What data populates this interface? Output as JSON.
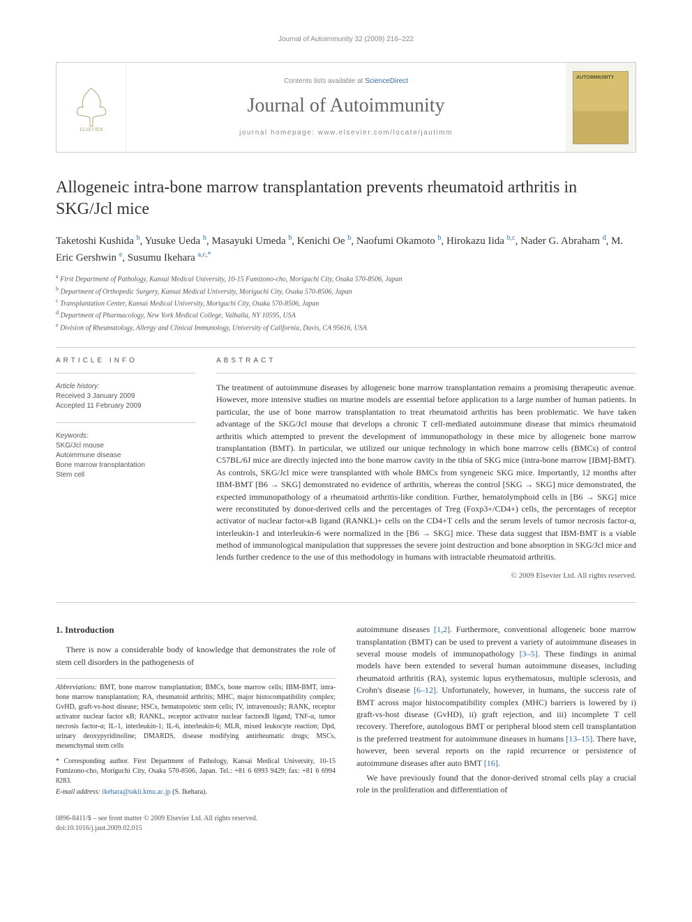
{
  "runningHead": "Journal of Autoimmunity 32 (2009) 216–222",
  "masthead": {
    "contentsPrefix": "Contents lists available at ",
    "contentsLink": "ScienceDirect",
    "journalTitle": "Journal of Autoimmunity",
    "homepagePrefix": "journal homepage: ",
    "homepageUrl": "www.elsevier.com/locate/jautimm",
    "coverTitle": "AUTOIMMUNITY"
  },
  "article": {
    "title": "Allogeneic intra-bone marrow transplantation prevents rheumatoid arthritis in SKG/Jcl mice",
    "authorsHtml": "Taketoshi Kushida <sup>b</sup>, Yusuke Ueda <sup>b</sup>, Masayuki Umeda <sup>b</sup>, Kenichi Oe <sup>b</sup>, Naofumi Okamoto <sup>b</sup>, Hirokazu Iida <sup>b,c</sup>, Nader G. Abraham <sup>d</sup>, M. Eric Gershwin <sup>e</sup>, Susumu Ikehara <sup>a,c,*</sup>",
    "affiliations": [
      "a First Department of Pathology, Kansai Medical University, 10-15 Fumizono-cho, Moriguchi City, Osaka 570-8506, Japan",
      "b Department of Orthopedic Surgery, Kansai Medical University, Moriguchi City, Osaka 570-8506, Japan",
      "c Transplantation Center, Kansai Medical University, Moriguchi City, Osaka 570-8506, Japan",
      "d Department of Pharmacology, New York Medical College, Valhalla, NY 10595, USA",
      "e Division of Rheumatology, Allergy and Clinical Immunology, University of California, Davis, CA 95616, USA"
    ]
  },
  "info": {
    "label": "ARTICLE INFO",
    "historyLabel": "Article history:",
    "received": "Received 3 January 2009",
    "accepted": "Accepted 11 February 2009",
    "keywordsLabel": "Keywords:",
    "keywords": [
      "SKG/Jcl mouse",
      "Autoimmune disease",
      "Bone marrow transplantation",
      "Stem cell"
    ]
  },
  "abstract": {
    "label": "ABSTRACT",
    "text": "The treatment of autoimmune diseases by allogeneic bone marrow transplantation remains a promising therapeutic avenue. However, more intensive studies on murine models are essential before application to a large number of human patients. In particular, the use of bone marrow transplantation to treat rheumatoid arthritis has been problematic. We have taken advantage of the SKG/Jcl mouse that develops a chronic T cell-mediated autoimmune disease that mimics rheumatoid arthritis which attempted to prevent the development of immunopathology in these mice by allogeneic bone marrow transplantation (BMT). In particular, we utilized our unique technology in which bone marrow cells (BMCs) of control C57BL/6J mice are directly injected into the bone marrow cavity in the tibia of SKG mice (intra-bone marrow [IBM]-BMT). As controls, SKG/Jcl mice were transplanted with whole BMCs from syngeneic SKG mice. Importantly, 12 months after IBM-BMT [B6 → SKG] demonstrated no evidence of arthritis, whereas the control [SKG → SKG] mice demonstrated, the expected immunopathology of a rheumatoid arthritis-like condition. Further, hematolymphoid cells in [B6 → SKG] mice were reconstituted by donor-derived cells and the percentages of Treg (Foxp3+/CD4+) cells, the percentages of receptor activator of nuclear factor-κB ligand (RANKL)+ cells on the CD4+T cells and the serum levels of tumor necrosis factor-α, interleukin-1 and interleukin-6 were normalized in the [B6 → SKG] mice. These data suggest that IBM-BMT is a viable method of immunological manipulation that suppresses the severe joint destruction and bone absorption in SKG/Jcl mice and lends further credence to the use of this methodology in humans with intractable rheumatoid arthritis.",
    "copyright": "© 2009 Elsevier Ltd. All rights reserved."
  },
  "body": {
    "introHeading": "1. Introduction",
    "leftPara": "There is now a considerable body of knowledge that demonstrates the role of stem cell disorders in the pathogenesis of",
    "abbrevLabel": "Abbreviations:",
    "abbrevText": " BMT, bone marrow transplantation; BMCs, bone marrow cells; IBM-BMT, intra-bone marrow transplantation; RA, rheumatoid arthritis; MHC, major histocompatibility complex; GvHD, graft-vs-host disease; HSCs, hematopoietic stem cells; IV, intravenously; RANK, receptor activator nuclear factor κB; RANKL, receptor activator nuclear factorκB ligand; TNF-α, tumor necrosis factor-α; IL-1, interleukin-1; IL-6, interleukin-6; MLR, mixed leukocyte reaction; Dpd, urinary deoxypyridinoline; DMARDS, disease modifying antirheumatic drugs; MSCs, mesenchymal stem cells",
    "corrText": "* Corresponding author. First Department of Pathology, Kansai Medical University, 10-15 Fumizono-cho, Moriguchi City, Osaka 570-8506, Japan. Tel.: +81 6 6993 9429; fax: +81 6 6994 8283.",
    "emailLabel": "E-mail address:",
    "email": " ikehara@takii.kmu.ac.jp",
    "emailSuffix": " (S. Ikehara).",
    "rightPara1": "autoimmune diseases [1,2]. Furthermore, conventional allogeneic bone marrow transplantation (BMT) can be used to prevent a variety of autoimmune diseases in several mouse models of immunopathology [3–5]. These findings in animal models have been extended to several human autoimmune diseases, including rheumatoid arthritis (RA), systemic lupus erythematosus, multiple sclerosis, and Crohn's disease [6–12]. Unfortunately, however, in humans, the success rate of BMT across major histocompatibility complex (MHC) barriers is lowered by i) graft-vs-host disease (GvHD), ii) graft rejection, and iii) incomplete T cell recovery. Therefore, autologous BMT or peripheral blood stem cell transplantation is the preferred treatment for autoimmune diseases in humans [13–15]. There have, however, been several reports on the rapid recurrence or persistence of autoimmune diseases after auto BMT [16].",
    "rightPara2": "We have previously found that the donor-derived stromal cells play a crucial role in the proliferation and differentiation of"
  },
  "footer": {
    "line1": "0896-8411/$ – see front matter © 2009 Elsevier Ltd. All rights reserved.",
    "line2": "doi:10.1016/j.jaut.2009.02.015"
  },
  "colors": {
    "link": "#2e6aa8",
    "text": "#333333",
    "muted": "#888888",
    "border": "#cccccc"
  }
}
